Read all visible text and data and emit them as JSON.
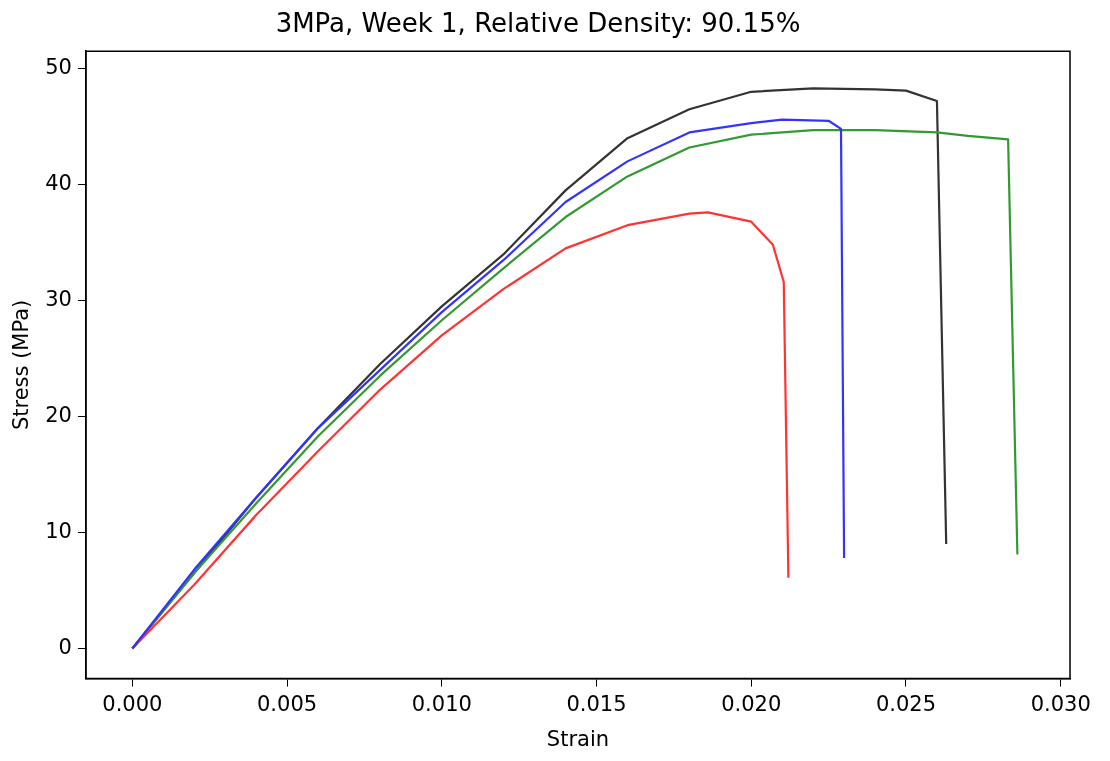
{
  "chart_data": {
    "type": "line",
    "title": "3MPa, Week 1, Relative Density: 90.15%",
    "xlabel": "Strain",
    "ylabel": "Stress (MPa)",
    "xlim": [
      -0.0015,
      0.0303
    ],
    "ylim": [
      -2.6,
      51.5
    ],
    "xticks": [
      {
        "value": 0,
        "label": "0.000"
      },
      {
        "value": 0.005,
        "label": "0.005"
      },
      {
        "value": 0.01,
        "label": "0.010"
      },
      {
        "value": 0.015,
        "label": "0.015"
      },
      {
        "value": 0.02,
        "label": "0.020"
      },
      {
        "value": 0.025,
        "label": "0.025"
      },
      {
        "value": 0.03,
        "label": "0.030"
      }
    ],
    "yticks": [
      0,
      10,
      20,
      30,
      40,
      50
    ],
    "grid": false,
    "legend": false,
    "marker": "none",
    "line_style": "solid",
    "series": [
      {
        "color": "#3333ff",
        "x": [
          0,
          0.002,
          0.004,
          0.006,
          0.008,
          0.01,
          0.012,
          0.014,
          0.016,
          0.018,
          0.02,
          0.021,
          0.0225,
          0.0229,
          0.023
        ],
        "values": [
          0,
          6.8,
          13,
          19,
          24,
          29,
          33.5,
          38.5,
          42,
          44.5,
          45.3,
          45.6,
          45.5,
          44.8,
          7.8
        ]
      },
      {
        "color": "#ff3333",
        "x": [
          0,
          0.002,
          0.004,
          0.006,
          0.008,
          0.01,
          0.012,
          0.014,
          0.016,
          0.018,
          0.0186,
          0.02,
          0.0207,
          0.02105,
          0.0212
        ],
        "values": [
          0,
          5.5,
          11.5,
          17,
          22.3,
          27,
          31,
          34.5,
          36.5,
          37.5,
          37.6,
          36.8,
          34.8,
          31.6,
          6.1
        ]
      },
      {
        "color": "#339933",
        "x": [
          0,
          0.002,
          0.004,
          0.006,
          0.008,
          0.01,
          0.012,
          0.014,
          0.016,
          0.018,
          0.02,
          0.022,
          0.024,
          0.026,
          0.027,
          0.0283,
          0.0286
        ],
        "values": [
          0,
          6.5,
          12.5,
          18.3,
          23.5,
          28.3,
          32.8,
          37.2,
          40.7,
          43.2,
          44.3,
          44.7,
          44.7,
          44.5,
          44.2,
          43.9,
          8.1
        ]
      },
      {
        "color": "#333333",
        "x": [
          0,
          0.002,
          0.004,
          0.006,
          0.008,
          0.01,
          0.012,
          0.014,
          0.016,
          0.018,
          0.02,
          0.022,
          0.024,
          0.025,
          0.026,
          0.0263
        ],
        "values": [
          0,
          6.5,
          13,
          19,
          24.5,
          29.5,
          34,
          39.5,
          44,
          46.5,
          48,
          48.3,
          48.2,
          48.1,
          47.2,
          9
        ]
      }
    ]
  }
}
